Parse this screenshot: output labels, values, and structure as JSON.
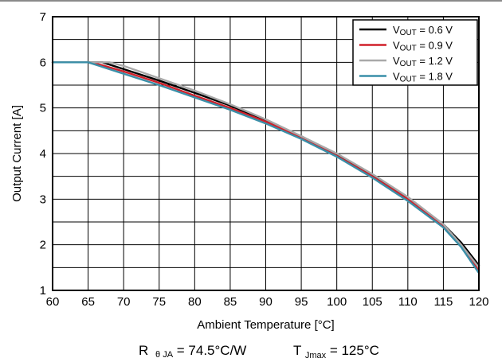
{
  "chart_data": {
    "type": "line",
    "xlabel": "Ambient Temperature [°C]",
    "ylabel": "Output Current [A]",
    "xlim": [
      60,
      120
    ],
    "ylim": [
      1,
      7
    ],
    "xticks": [
      60,
      65,
      70,
      75,
      80,
      85,
      90,
      95,
      100,
      105,
      110,
      115,
      120
    ],
    "yticks": [
      1,
      2,
      3,
      4,
      5,
      6,
      7
    ],
    "grid": true,
    "legend_position": "top-right",
    "series": [
      {
        "name_main": "V",
        "name_sub": "OUT",
        "name_value": " = 0.6 V",
        "color": "#000000",
        "x": [
          60,
          65,
          67,
          70,
          75,
          80,
          85,
          90,
          95,
          100,
          105,
          110,
          115,
          117.5,
          120
        ],
        "y": [
          6.0,
          6.0,
          6.0,
          5.85,
          5.6,
          5.33,
          5.05,
          4.72,
          4.38,
          3.98,
          3.52,
          3.02,
          2.45,
          2.05,
          1.55
        ]
      },
      {
        "name_main": "V",
        "name_sub": "OUT",
        "name_value": " = 0.9 V",
        "color": "#d0202a",
        "x": [
          60,
          65,
          66,
          70,
          75,
          80,
          85,
          90,
          95,
          100,
          105,
          110,
          115,
          117.5,
          120
        ],
        "y": [
          6.0,
          6.0,
          5.98,
          5.8,
          5.55,
          5.27,
          5.0,
          4.7,
          4.35,
          3.95,
          3.5,
          3.0,
          2.4,
          2.0,
          1.45
        ]
      },
      {
        "name_main": "V",
        "name_sub": "OUT",
        "name_value": " = 1.2 V",
        "color": "#a9a9a9",
        "x": [
          60,
          65,
          68,
          70,
          75,
          80,
          85,
          90,
          95,
          100,
          105,
          110,
          115,
          117.5,
          120
        ],
        "y": [
          6.0,
          6.0,
          6.0,
          5.92,
          5.65,
          5.38,
          5.08,
          4.75,
          4.38,
          4.0,
          3.55,
          3.05,
          2.45,
          2.0,
          1.5
        ]
      },
      {
        "name_main": "V",
        "name_sub": "OUT",
        "name_value": " = 1.8 V",
        "color": "#3a8fa8",
        "x": [
          60,
          65,
          70,
          75,
          80,
          85,
          90,
          95,
          100,
          105,
          110,
          115,
          117.5,
          120
        ],
        "y": [
          6.0,
          6.0,
          5.75,
          5.5,
          5.23,
          4.96,
          4.66,
          4.32,
          3.93,
          3.47,
          2.96,
          2.38,
          1.95,
          1.38
        ]
      }
    ]
  },
  "footer": {
    "rtheta_main": "R",
    "rtheta_sub": "θ JA",
    "rtheta_value": " = 74.5°C/W",
    "tj_main": "T",
    "tj_sub": "Jmax",
    "tj_value": " = 125°C"
  }
}
